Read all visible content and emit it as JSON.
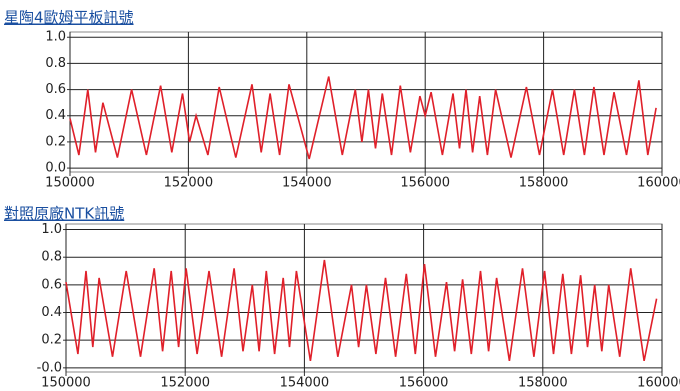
{
  "chart_data": [
    {
      "type": "line",
      "title": "星陶4歐姆平板訊號",
      "color": "#e0202a",
      "grid": true,
      "xlim": [
        150000,
        160000
      ],
      "xticks": [
        150000,
        152000,
        154000,
        156000,
        158000,
        160000
      ],
      "ylim": [
        -0.03,
        1.04
      ],
      "yticks": [
        {
          "value": 0,
          "label": "0.0"
        },
        0.2,
        0.4,
        0.6,
        0.8,
        {
          "value": 1,
          "label": "1.0"
        }
      ],
      "x": [
        150000,
        150150,
        150300,
        150430,
        150555,
        150800,
        151040,
        151290,
        151530,
        151720,
        151900,
        152020,
        152130,
        152330,
        152520,
        152800,
        153075,
        153230,
        153380,
        153540,
        153700,
        154040,
        154370,
        154600,
        154820,
        154930,
        155040,
        155160,
        155275,
        155430,
        155580,
        155750,
        155910,
        156000,
        156100,
        156290,
        156470,
        156580,
        156690,
        156800,
        156920,
        157050,
        157190,
        157450,
        157710,
        157930,
        158150,
        158340,
        158520,
        158690,
        158850,
        159020,
        159190,
        159400,
        159610,
        159760,
        159900
      ],
      "values": [
        0.38,
        0.1,
        0.6,
        0.12,
        0.5,
        0.08,
        0.6,
        0.1,
        0.63,
        0.12,
        0.57,
        0.2,
        0.4,
        0.1,
        0.62,
        0.08,
        0.64,
        0.12,
        0.57,
        0.1,
        0.64,
        0.07,
        0.7,
        0.1,
        0.6,
        0.2,
        0.6,
        0.15,
        0.57,
        0.1,
        0.63,
        0.12,
        0.55,
        0.4,
        0.58,
        0.1,
        0.57,
        0.15,
        0.6,
        0.12,
        0.55,
        0.1,
        0.6,
        0.08,
        0.62,
        0.1,
        0.6,
        0.1,
        0.6,
        0.1,
        0.62,
        0.1,
        0.58,
        0.1,
        0.67,
        0.1,
        0.46
      ]
    },
    {
      "type": "line",
      "title": "對照原廠NTK訊號",
      "color": "#e0202a",
      "grid": true,
      "xlim": [
        150000,
        160000
      ],
      "xticks": [
        150000,
        152000,
        154000,
        156000,
        158000,
        160000
      ],
      "ylim": [
        -0.03,
        1.04
      ],
      "yticks": [
        {
          "value": 0,
          "label": "-0.0"
        },
        0.2,
        0.4,
        0.6,
        0.8,
        {
          "value": 1,
          "label": "1.0"
        }
      ],
      "x": [
        150000,
        150200,
        150335,
        150450,
        150555,
        150780,
        151010,
        151250,
        151480,
        151620,
        151765,
        151890,
        152015,
        152200,
        152400,
        152610,
        152820,
        152970,
        153125,
        153240,
        153360,
        153500,
        153645,
        153750,
        153865,
        154100,
        154335,
        154560,
        154790,
        154910,
        155040,
        155200,
        155360,
        155530,
        155710,
        155860,
        156015,
        156200,
        156385,
        156520,
        156655,
        156800,
        156955,
        157090,
        157225,
        157440,
        157660,
        157850,
        158030,
        158180,
        158335,
        158480,
        158635,
        158750,
        158870,
        158990,
        159105,
        159290,
        159475,
        159700,
        159910
      ],
      "values": [
        0.62,
        0.1,
        0.7,
        0.15,
        0.65,
        0.08,
        0.7,
        0.08,
        0.72,
        0.12,
        0.7,
        0.15,
        0.72,
        0.1,
        0.7,
        0.08,
        0.72,
        0.12,
        0.6,
        0.12,
        0.7,
        0.1,
        0.65,
        0.15,
        0.7,
        0.05,
        0.78,
        0.08,
        0.6,
        0.15,
        0.6,
        0.1,
        0.65,
        0.08,
        0.68,
        0.1,
        0.75,
        0.08,
        0.62,
        0.12,
        0.64,
        0.1,
        0.7,
        0.12,
        0.65,
        0.05,
        0.72,
        0.08,
        0.7,
        0.1,
        0.68,
        0.1,
        0.67,
        0.15,
        0.6,
        0.12,
        0.6,
        0.08,
        0.72,
        0.05,
        0.5
      ]
    }
  ]
}
